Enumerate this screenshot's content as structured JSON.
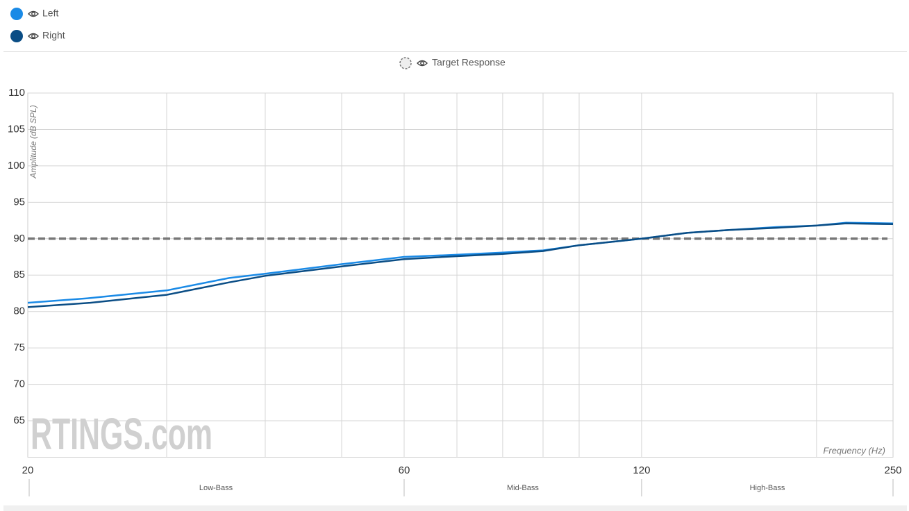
{
  "chart_data": {
    "type": "line",
    "x": [
      20,
      24,
      30,
      36,
      40,
      50,
      60,
      70,
      80,
      90,
      100,
      120,
      137,
      155,
      178,
      200,
      218,
      250
    ],
    "series": [
      {
        "name": "Left",
        "color": "#1a8ae6",
        "values": [
          81.2,
          81.85,
          82.9,
          84.6,
          85.2,
          86.5,
          87.5,
          87.8,
          88.1,
          88.4,
          89.1,
          90.0,
          90.8,
          91.2,
          91.6,
          91.8,
          92.2,
          92.1
        ]
      },
      {
        "name": "Right",
        "color": "#0a4d85",
        "values": [
          80.6,
          81.2,
          82.3,
          84.0,
          84.9,
          86.2,
          87.2,
          87.6,
          87.9,
          88.3,
          89.1,
          90.0,
          90.8,
          91.2,
          91.5,
          91.8,
          92.1,
          92.0
        ]
      }
    ],
    "target": {
      "name": "Target Response",
      "value": 90,
      "color": "#777777"
    },
    "xscale": "log",
    "xlim": [
      20,
      250
    ],
    "xticks": [
      20,
      60,
      120,
      250
    ],
    "xgrid": [
      30,
      40,
      50,
      60,
      70,
      80,
      90,
      100,
      120,
      200
    ],
    "ylim": [
      60,
      110
    ],
    "yticks": [
      65,
      70,
      75,
      80,
      85,
      90,
      95,
      100,
      105,
      110
    ],
    "ylabel": "Amplitude (dB SPL)",
    "xlabel": "Frequency (Hz)",
    "regions": [
      {
        "label": "Low-Bass",
        "start": 20,
        "end": 60
      },
      {
        "label": "Mid-Bass",
        "start": 60,
        "end": 120
      },
      {
        "label": "High-Bass",
        "start": 120,
        "end": 250
      }
    ],
    "watermark": "RTINGS.com",
    "grid": true
  }
}
